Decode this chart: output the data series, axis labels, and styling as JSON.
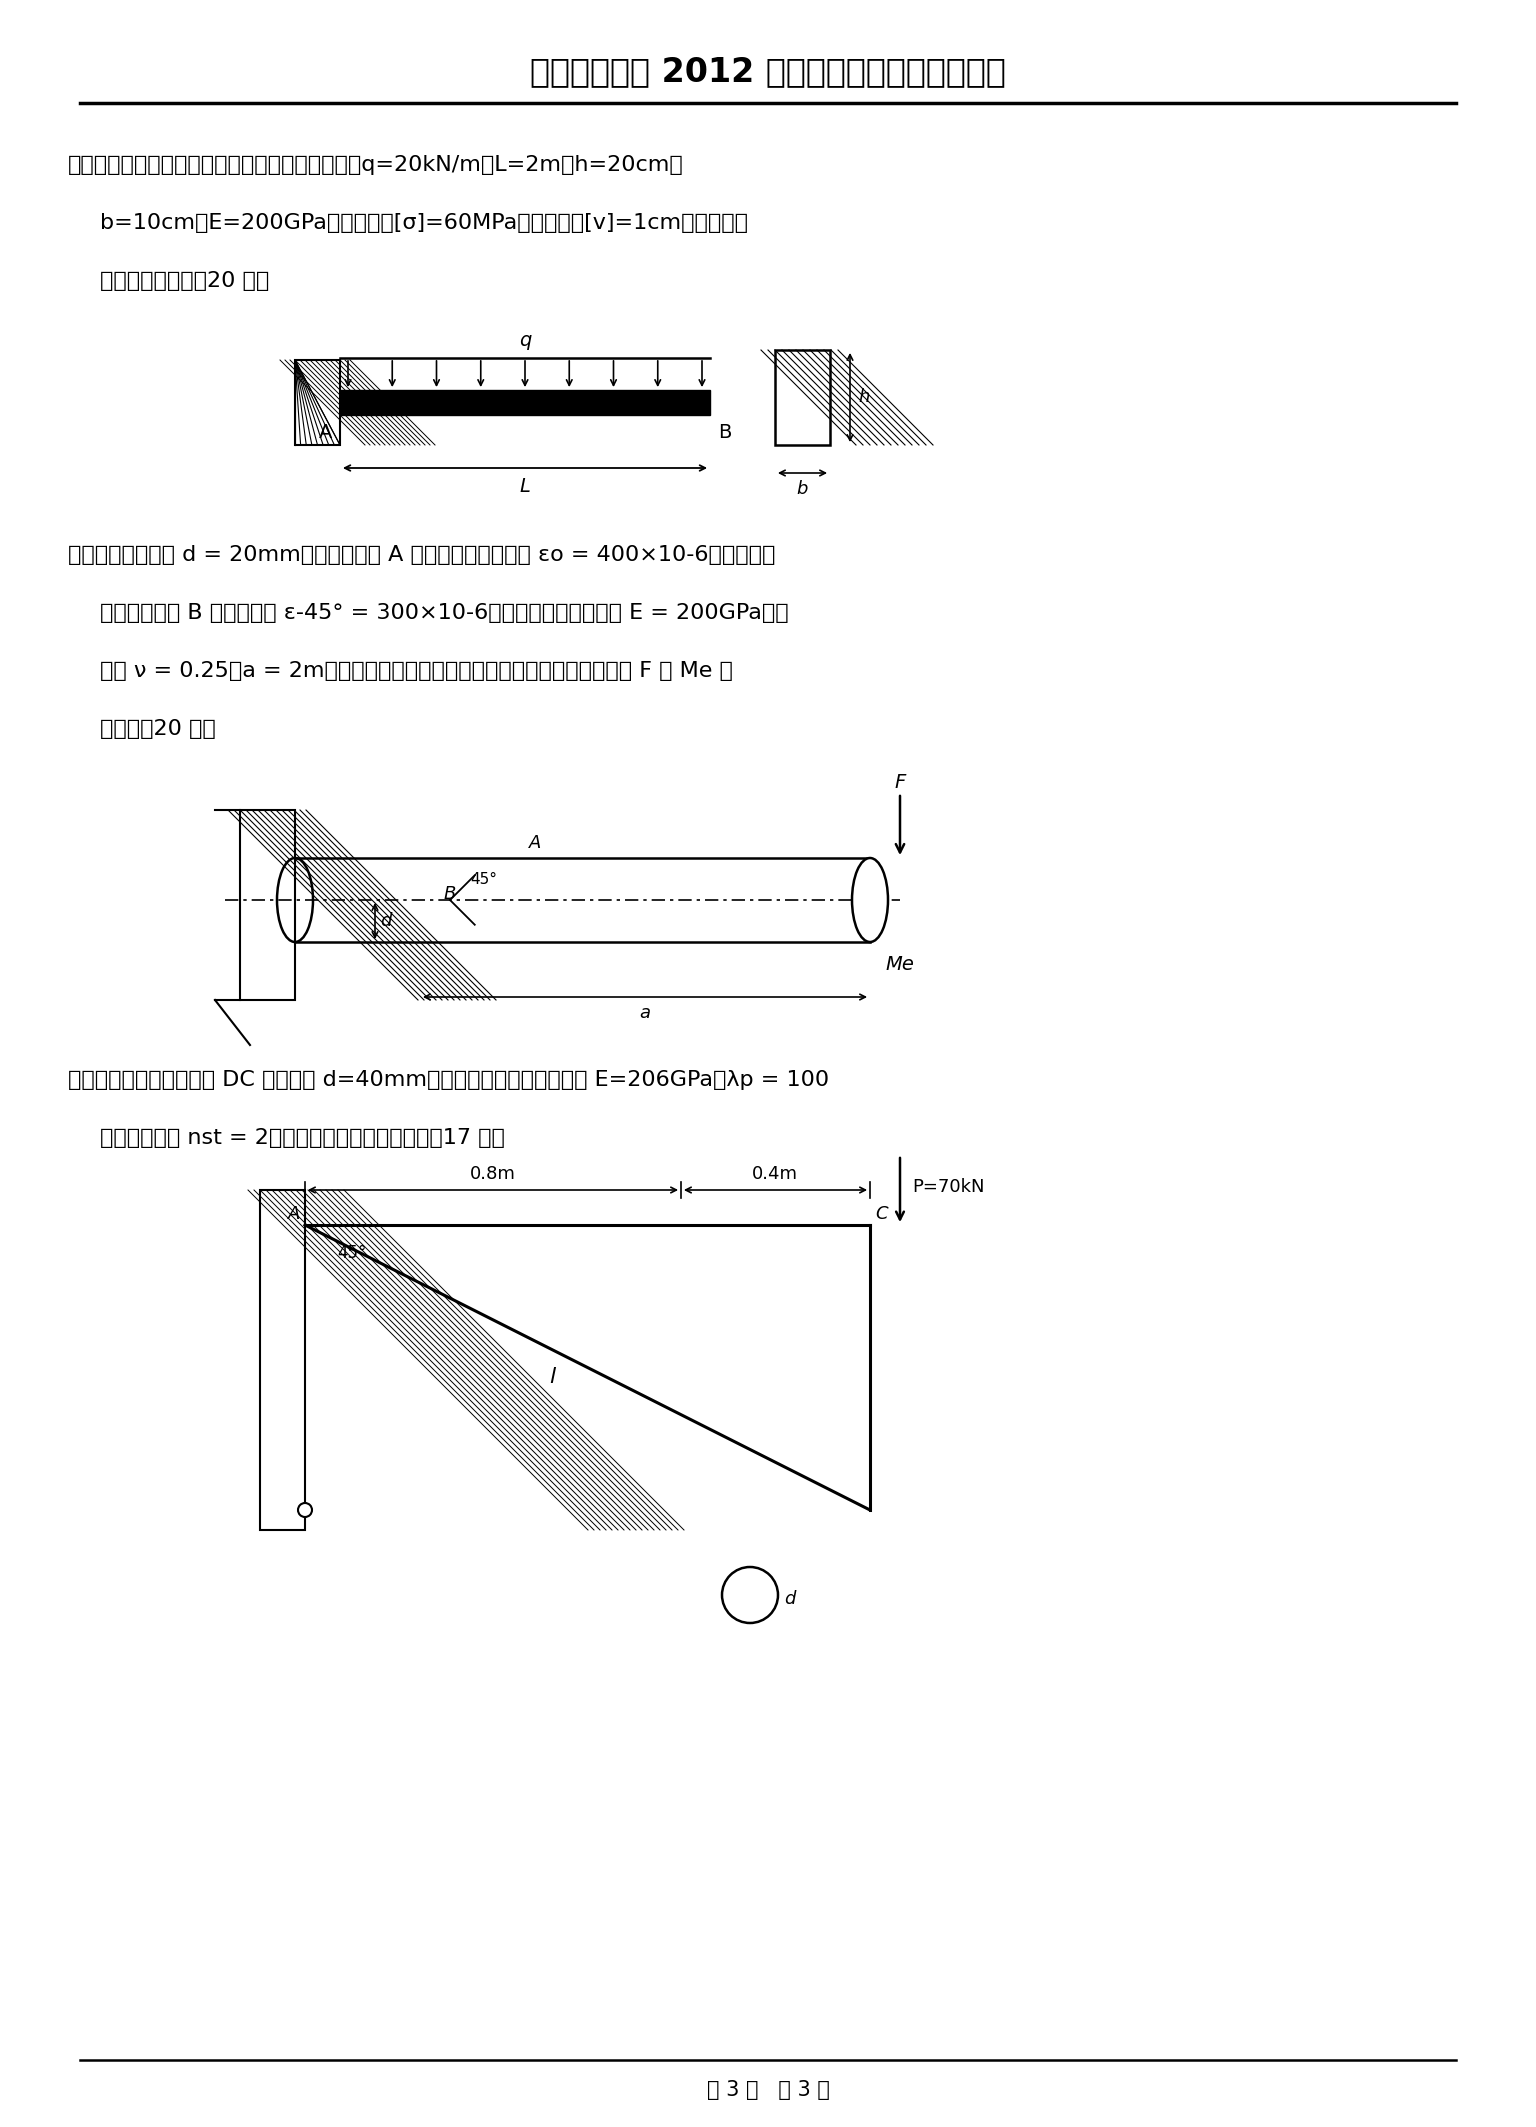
{
  "title": "湖北工业大学 2012 年招收硕士学位研究生试卷",
  "bg_color": "#ffffff",
  "text_color": "#000000",
  "footer": "第 3 页   共 3 页",
  "q6_line1": "六、如图所示，矩形截面悬臂梁受均布载荷作用，q=20kN/m，L=2m，h=20cm，",
  "q6_line2": "b=10cm，E=200GPa，许用应力[σ]=60MPa，许用挠度[v]=1cm，试校核梁",
  "q6_line3": "的强度和刚度。（20 分）",
  "q7_line1": "七、已知圆轴直径 d = 20mm，在其上边缘 A 点处测得纵向线应变 εo = 400×10-6，在水平直",
  "q7_line2": "径平面的外侧 B 点处，测得 ε-45° = 300×10-6，已知材料的弹性模量 E = 200GPa，泊",
  "q7_line3": "松比 ν = 0.25，a = 2m。若不计弯曲切应力的影响，试求作用在轴上的载荷 F 和 Me 的",
  "q7_line4": "大小。（20 分）",
  "q8_line1": "八、图示一钢托架，已知 DC 杆的直径 d=40mm，材料为低碳钢，弹性模量 E=206GPa，λp = 100",
  "q8_line2": "稳定安全系数 nst = 2。试校核该压杆是否安全？（17 分）"
}
